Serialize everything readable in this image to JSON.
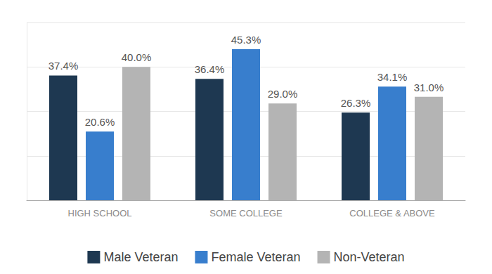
{
  "chart_data": {
    "type": "bar",
    "categories": [
      "HIGH SCHOOL",
      "SOME COLLEGE",
      "COLLEGE & ABOVE"
    ],
    "series": [
      {
        "name": "Male Veteran",
        "color": "#1e3851",
        "values": [
          37.4,
          36.4,
          26.3
        ],
        "value_labels": [
          "37.4%",
          "36.4%",
          "26.3%"
        ]
      },
      {
        "name": "Female Veteran",
        "color": "#387ecd",
        "values": [
          20.6,
          45.3,
          34.1
        ],
        "value_labels": [
          "20.6%",
          "45.3%",
          "34.1%"
        ]
      },
      {
        "name": "Non-Veteran",
        "color": "#b4b4b4",
        "values": [
          40.0,
          29.0,
          31.0
        ],
        "value_labels": [
          "40.0%",
          "29.0%",
          "31.0%"
        ]
      }
    ],
    "ylim": [
      0,
      53.3
    ],
    "yticks": [
      0,
      13.3,
      26.7,
      40,
      53.3
    ],
    "grid": true,
    "legend": "bottom",
    "data_labels": true,
    "tick_labels": "x"
  }
}
